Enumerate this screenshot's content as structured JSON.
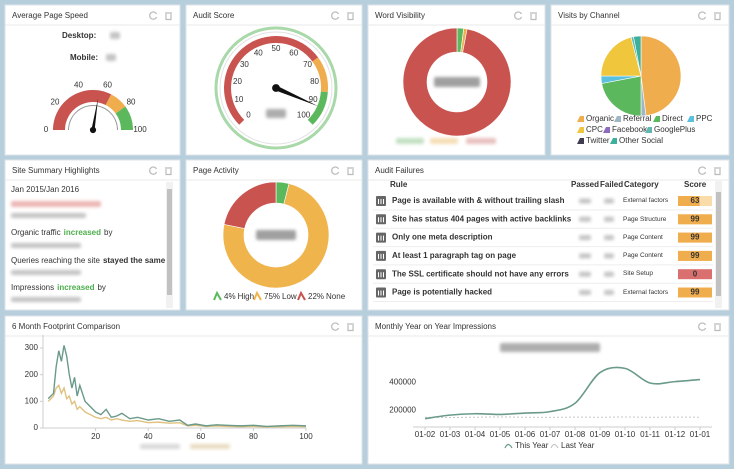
{
  "page_speed": {
    "title": "Average Page Speed",
    "desktop": "Desktop:",
    "mobile": "Mobile:",
    "range": [
      0,
      100
    ],
    "ticks": [
      0,
      20,
      40,
      60,
      80,
      100
    ],
    "value": 55,
    "bands": [
      {
        "to": 65,
        "color": "#c9534f"
      },
      {
        "to": 80,
        "color": "#f0ad4e"
      },
      {
        "to": 100,
        "color": "#5cb85c"
      }
    ]
  },
  "audit_score": {
    "title": "Audit Score",
    "range": [
      0,
      100
    ],
    "ticks": [
      0,
      10,
      20,
      30,
      40,
      50,
      60,
      70,
      80,
      90,
      100
    ],
    "value": 92,
    "bands": [
      {
        "to": 70,
        "color": "#c9534f"
      },
      {
        "to": 85,
        "color": "#f0ad4e"
      },
      {
        "to": 100,
        "color": "#5cb85c"
      }
    ]
  },
  "word_visibility": {
    "title": "Word Visibility",
    "type": "donut",
    "values": [
      2,
      1,
      97
    ],
    "colors": [
      "#5cb85c",
      "#f0ad4e",
      "#c9534f"
    ]
  },
  "visits_by_channel": {
    "title": "Visits by Channel",
    "type": "pie",
    "series": [
      {
        "name": "Organic",
        "color": "#f0ad4e",
        "value": 48
      },
      {
        "name": "Referral",
        "color": "#9fb7c4",
        "value": 2
      },
      {
        "name": "Direct",
        "color": "#5cb85c",
        "value": 22
      },
      {
        "name": "PPC",
        "color": "#5bc0de",
        "value": 3
      },
      {
        "name": "CPC",
        "color": "#f0c63c",
        "value": 21
      },
      {
        "name": "Facebook",
        "color": "#8e6bbf",
        "value": 0
      },
      {
        "name": "GooglePlus",
        "color": "#62b7b0",
        "value": 1
      },
      {
        "name": "Twitter",
        "color": "#3d3d4f",
        "value": 0
      },
      {
        "name": "Other Social",
        "color": "#3cb09c",
        "value": 3
      }
    ]
  },
  "site_summary": {
    "title": "Site Summary Highlights",
    "period": "Jan 2015/Jan 2016",
    "lines": [
      {
        "text": "Organic traffic",
        "highlight": "increased",
        "rest": "by",
        "highlight_color": "#4cae4c"
      },
      {
        "text": "Queries reaching the site",
        "highlight": "stayed the same",
        "highlight_color": "#333333"
      },
      {
        "text": "Impressions",
        "highlight": "increased",
        "rest": "by",
        "highlight_color": "#4cae4c"
      }
    ]
  },
  "page_activity": {
    "title": "Page Activity",
    "type": "donut",
    "series": [
      {
        "name": "High",
        "value": 4,
        "value_label": "4%",
        "color": "#5cb85c"
      },
      {
        "name": "Low",
        "value": 75,
        "value_label": "75%",
        "color": "#f0b44c"
      },
      {
        "name": "None",
        "value": 22,
        "value_label": "22%",
        "color": "#c9534f"
      }
    ]
  },
  "audit_failures": {
    "title": "Audit Failures",
    "columns": [
      "Rule",
      "Passed",
      "Failed",
      "Category",
      "Score"
    ],
    "bar_color": "#f0ad4e",
    "zero_color": "#d9706f",
    "rows": [
      {
        "rule": "Page is available with & without trailing slash",
        "category": "External factors",
        "score": 63
      },
      {
        "rule": "Site has status 404 pages with active backlinks",
        "category": "Page Structure",
        "score": 99
      },
      {
        "rule": "Only one meta description",
        "category": "Page Content",
        "score": 99
      },
      {
        "rule": "At least 1 paragraph tag on page",
        "category": "Page Content",
        "score": 99
      },
      {
        "rule": "The SSL certificate should not have any errors",
        "category": "Site Setup",
        "score": 0
      },
      {
        "rule": "Page is potentially hacked",
        "category": "External factors",
        "score": 99
      }
    ]
  },
  "footprint": {
    "title": "6 Month Footprint Comparison",
    "type": "line",
    "xlim": [
      0,
      100
    ],
    "ylim": [
      0,
      350
    ],
    "xticks": [
      20,
      40,
      60,
      80,
      100
    ],
    "yticks": [
      0,
      100,
      200,
      300
    ],
    "series": [
      {
        "color": "#6a9a8a",
        "x": [
          2,
          4,
          5,
          6,
          7,
          8,
          9,
          10,
          11,
          12,
          13,
          14,
          16,
          18,
          20,
          22,
          24,
          26,
          28,
          30,
          33,
          36,
          40,
          44,
          48,
          52,
          55,
          58,
          62,
          66,
          70,
          75,
          80,
          85,
          90,
          95,
          100
        ],
        "values": [
          110,
          130,
          230,
          290,
          250,
          310,
          270,
          200,
          150,
          190,
          120,
          160,
          100,
          80,
          60,
          50,
          70,
          40,
          45,
          55,
          35,
          40,
          30,
          35,
          25,
          30,
          10,
          15,
          8,
          12,
          10,
          8,
          10,
          6,
          8,
          10,
          8
        ]
      },
      {
        "color": "#dfc27f",
        "x": [
          2,
          4,
          5,
          6,
          7,
          8,
          9,
          10,
          11,
          12,
          13,
          14,
          16,
          18,
          20,
          22,
          24,
          26,
          28,
          30,
          33,
          36,
          40,
          44,
          48,
          52,
          55,
          58,
          62,
          66,
          70,
          75,
          80,
          85,
          90,
          95,
          100
        ],
        "values": [
          100,
          120,
          150,
          160,
          130,
          150,
          110,
          120,
          90,
          100,
          70,
          80,
          60,
          50,
          40,
          35,
          40,
          30,
          35,
          30,
          25,
          28,
          20,
          22,
          18,
          20,
          8,
          10,
          6,
          8,
          6,
          5,
          6,
          4,
          5,
          6,
          5
        ]
      }
    ]
  },
  "impressions": {
    "title": "Monthly Year on Year Impressions",
    "type": "line",
    "categories": [
      "01-02",
      "01-03",
      "01-04",
      "01-05",
      "01-06",
      "01-07",
      "01-08",
      "01-09",
      "01-10",
      "01-11",
      "01-12",
      "01-01"
    ],
    "ylim": [
      80000,
      560000
    ],
    "yticks": [
      200000,
      400000
    ],
    "series": [
      {
        "name": "This Year",
        "color": "#6a9a8a",
        "dash": false,
        "values": [
          140000,
          165000,
          175000,
          170000,
          180000,
          190000,
          250000,
          470000,
          500000,
          395000,
          405000,
          420000
        ]
      },
      {
        "name": "Last Year",
        "color": "#c8c8c8",
        "dash": true,
        "values": [
          150000,
          148000,
          150000,
          152000,
          150000,
          149000,
          151000,
          150000,
          152000,
          150000,
          151000,
          150000
        ]
      }
    ]
  }
}
